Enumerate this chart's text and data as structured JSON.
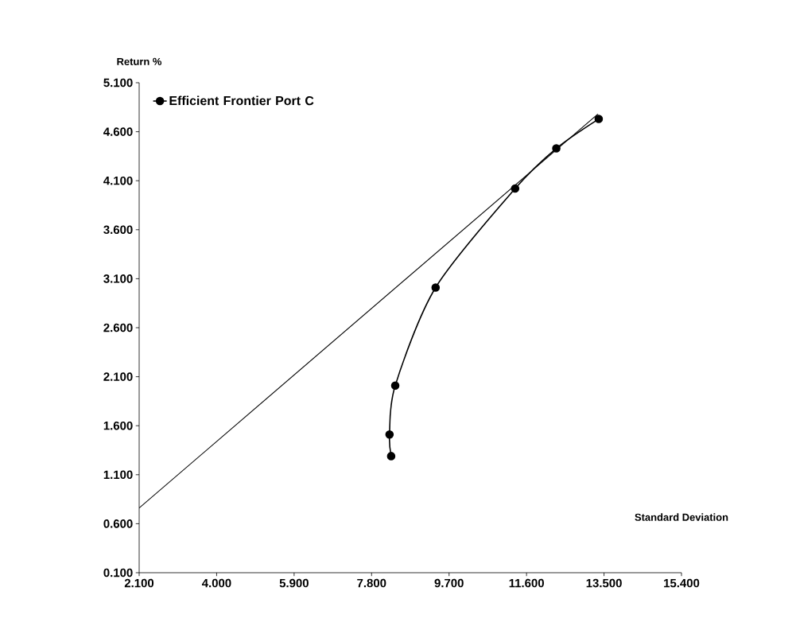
{
  "chart_data": {
    "type": "line",
    "xlabel": "Standard Deviation",
    "ylabel": "Return %",
    "xlim": [
      2.1,
      15.4
    ],
    "ylim": [
      0.1,
      5.1
    ],
    "xticks": [
      {
        "value": 2.1,
        "label": "2.100"
      },
      {
        "value": 4.0,
        "label": "4.000"
      },
      {
        "value": 5.9,
        "label": "5.900"
      },
      {
        "value": 7.8,
        "label": "7.800"
      },
      {
        "value": 9.7,
        "label": "9.700"
      },
      {
        "value": 11.6,
        "label": "11.600"
      },
      {
        "value": 13.5,
        "label": "13.500"
      },
      {
        "value": 15.4,
        "label": "15.400"
      }
    ],
    "yticks": [
      {
        "value": 0.1,
        "label": "0.100"
      },
      {
        "value": 0.6,
        "label": "0.600"
      },
      {
        "value": 1.1,
        "label": "1.100"
      },
      {
        "value": 1.6,
        "label": "1.600"
      },
      {
        "value": 2.1,
        "label": "2.100"
      },
      {
        "value": 2.6,
        "label": "2.600"
      },
      {
        "value": 3.1,
        "label": "3.100"
      },
      {
        "value": 3.6,
        "label": "3.600"
      },
      {
        "value": 4.1,
        "label": "4.100"
      },
      {
        "value": 4.6,
        "label": "4.600"
      },
      {
        "value": 5.1,
        "label": "5.100"
      }
    ],
    "legend": "top left",
    "grid": false,
    "series": [
      {
        "name": "Efficient Frontier Port C",
        "color": "#000000",
        "marker": "circle",
        "x": [
          8.28,
          8.24,
          8.38,
          9.37,
          11.32,
          12.33,
          13.37
        ],
        "values": [
          1.29,
          1.51,
          2.01,
          3.01,
          4.02,
          4.43,
          4.73
        ]
      },
      {
        "color": "#000000",
        "marker": "none",
        "x": [
          2.1,
          13.35
        ],
        "values": [
          0.76,
          4.78
        ]
      }
    ]
  }
}
